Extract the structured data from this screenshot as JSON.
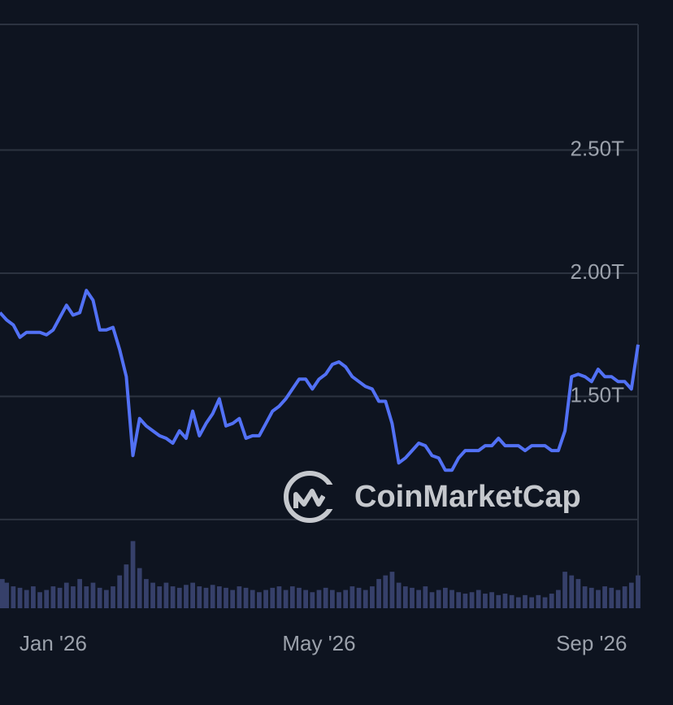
{
  "chart_data": {
    "type": "line",
    "categories": [
      null,
      null,
      null,
      null,
      null,
      null,
      null,
      null,
      "Jan '26",
      null,
      null,
      null,
      null,
      null,
      null,
      null,
      null,
      null,
      null,
      null,
      null,
      null,
      null,
      null,
      null,
      null,
      null,
      null,
      null,
      null,
      null,
      null,
      null,
      null,
      null,
      null,
      null,
      null,
      null,
      null,
      null,
      null,
      null,
      null,
      null,
      null,
      null,
      null,
      "May '26",
      null,
      null,
      null,
      null,
      null,
      null,
      null,
      null,
      null,
      null,
      null,
      null,
      null,
      null,
      null,
      null,
      null,
      null,
      null,
      null,
      null,
      null,
      null,
      null,
      null,
      null,
      null,
      null,
      null,
      null,
      null,
      null,
      null,
      null,
      null,
      null,
      null,
      null,
      null,
      null,
      "Sep '26",
      null,
      null,
      null,
      null,
      null,
      null,
      null
    ],
    "values": [
      1.84,
      1.81,
      1.79,
      1.74,
      1.76,
      1.76,
      1.76,
      1.75,
      1.77,
      1.82,
      1.87,
      1.83,
      1.84,
      1.93,
      1.89,
      1.77,
      1.77,
      1.78,
      1.69,
      1.58,
      1.26,
      1.41,
      1.38,
      1.36,
      1.34,
      1.33,
      1.31,
      1.36,
      1.33,
      1.44,
      1.34,
      1.39,
      1.43,
      1.49,
      1.38,
      1.39,
      1.41,
      1.33,
      1.34,
      1.34,
      1.39,
      1.44,
      1.46,
      1.49,
      1.53,
      1.57,
      1.57,
      1.53,
      1.57,
      1.59,
      1.63,
      1.64,
      1.62,
      1.58,
      1.56,
      1.54,
      1.53,
      1.48,
      1.48,
      1.39,
      1.23,
      1.25,
      1.28,
      1.31,
      1.3,
      1.26,
      1.25,
      1.2,
      1.2,
      1.25,
      1.28,
      1.28,
      1.28,
      1.3,
      1.3,
      1.33,
      1.3,
      1.3,
      1.3,
      1.28,
      1.3,
      1.3,
      1.3,
      1.28,
      1.28,
      1.36,
      1.58,
      1.59,
      1.58,
      1.56,
      1.61,
      1.58,
      1.58,
      1.56,
      1.56,
      1.53,
      1.71
    ],
    "color": "#5271f5",
    "volume": {
      "type": "bar",
      "color": "#36406a",
      "axis": "y2",
      "values": [
        40,
        35,
        30,
        28,
        25,
        30,
        22,
        25,
        30,
        28,
        35,
        30,
        40,
        30,
        35,
        28,
        25,
        30,
        45,
        60,
        92,
        55,
        40,
        35,
        30,
        35,
        30,
        28,
        32,
        35,
        30,
        28,
        32,
        30,
        28,
        25,
        30,
        28,
        25,
        22,
        25,
        28,
        30,
        25,
        30,
        28,
        25,
        22,
        25,
        28,
        25,
        22,
        25,
        30,
        28,
        25,
        30,
        40,
        45,
        50,
        35,
        30,
        28,
        25,
        30,
        22,
        25,
        28,
        25,
        22,
        20,
        22,
        25,
        20,
        22,
        18,
        20,
        18,
        15,
        18,
        15,
        18,
        15,
        20,
        25,
        50,
        45,
        40,
        30,
        28,
        25,
        30,
        28,
        25,
        30,
        35,
        45
      ]
    },
    "ylim": [
      0.64,
      3.01
    ],
    "yticks": [
      {
        "value": 1,
        "label": null
      },
      {
        "value": 1.5,
        "label": "1.50T"
      },
      {
        "value": 2,
        "label": "2.00T"
      },
      {
        "value": 2.5,
        "label": "2.50T"
      }
    ],
    "y2lim": [
      0,
      800
    ],
    "grid": true,
    "watermark": "CoinMarketCap"
  }
}
